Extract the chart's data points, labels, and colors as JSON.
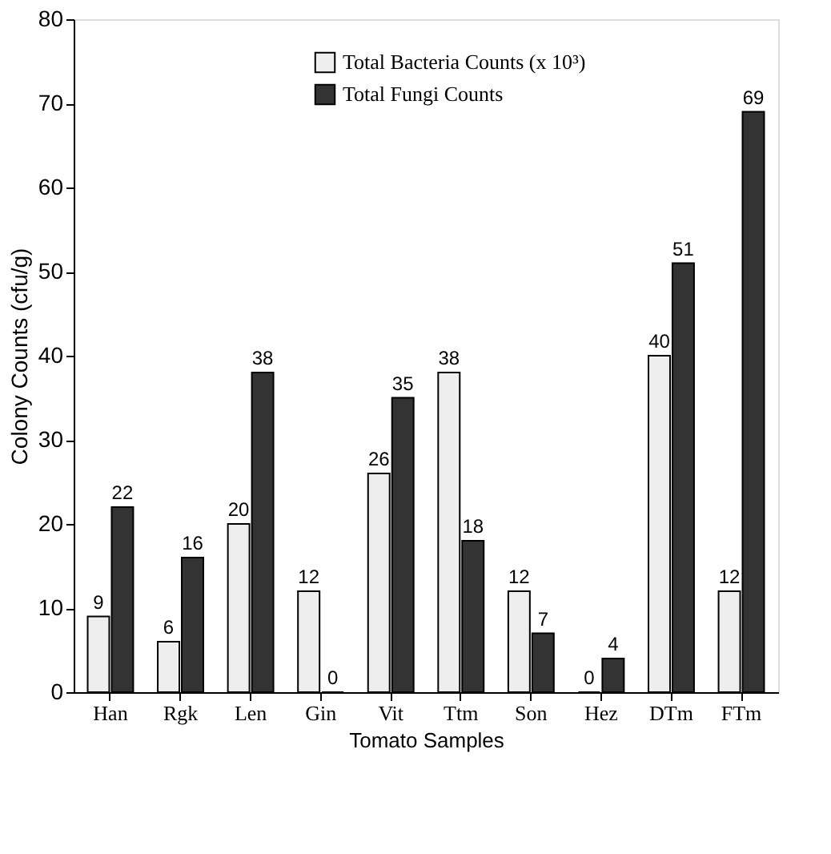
{
  "chart_data": {
    "type": "bar",
    "xlabel": "Tomato Samples",
    "ylabel": "Colony Counts (cfu/g)",
    "categories": [
      "Han",
      "Rgk",
      "Len",
      "Gin",
      "Vit",
      "Ttm",
      "Son",
      "Hez",
      "DTm",
      "FTm"
    ],
    "series": [
      {
        "name": "Total Bacteria Counts (x 10³)",
        "color": "#eeeeee",
        "values": [
          9,
          6,
          20,
          12,
          26,
          38,
          12,
          0,
          40,
          12
        ]
      },
      {
        "name": "Total Fungi Counts",
        "color": "#333333",
        "values": [
          22,
          16,
          38,
          0,
          35,
          18,
          7,
          4,
          51,
          69
        ]
      }
    ],
    "ylim": [
      0,
      80
    ],
    "yticks": [
      0,
      10,
      20,
      30,
      40,
      50,
      60,
      70,
      80
    ],
    "grid": false,
    "legend": "top",
    "data_labels": true
  }
}
